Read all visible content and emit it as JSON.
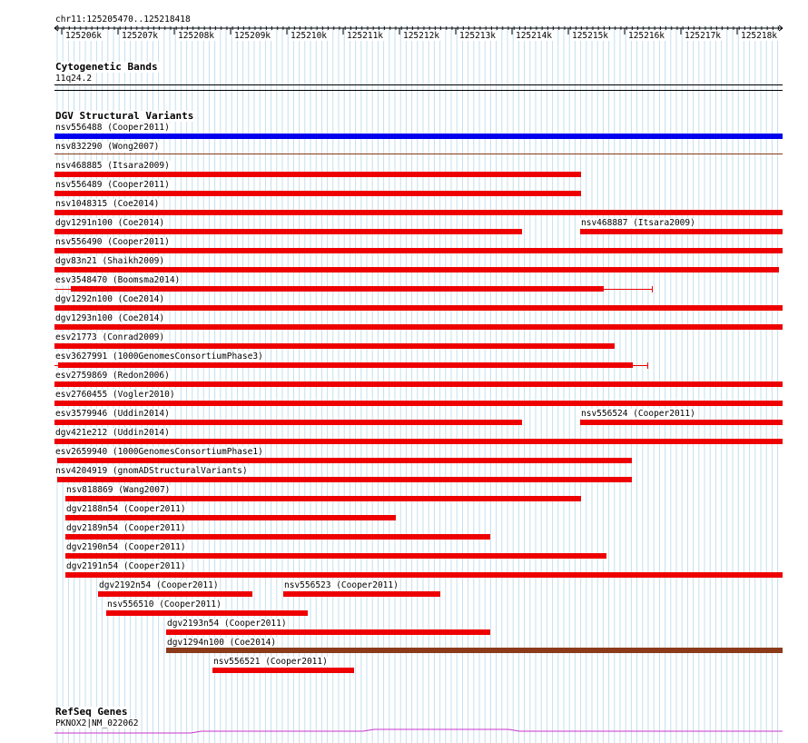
{
  "location": "chr11:125205470..125218418",
  "ruler_ticks": [
    "125206k",
    "125207k",
    "125208k",
    "125209k",
    "125210k",
    "125211k",
    "125212k",
    "125213k",
    "125214k",
    "125215k",
    "125216k",
    "125217k",
    "125218k"
  ],
  "cytoband": {
    "title": "Cytogenetic Bands",
    "band": "11q24.2"
  },
  "dgv": {
    "title": "DGV Structural Variants",
    "features": [
      {
        "label": "nsv556488 (Cooper2011)",
        "color": "#0000ee"
      },
      {
        "label": "nsv832290 (Wong2007)",
        "color": "#8b3a1a"
      },
      {
        "label": "nsv468885 (Itsara2009)",
        "color": "#ee0000"
      },
      {
        "label": "nsv556489 (Cooper2011)",
        "color": "#ee0000"
      },
      {
        "label": "nsv1048315 (Coe2014)",
        "color": "#ee0000"
      },
      {
        "label": "dgv1291n100 (Coe2014)",
        "color": "#ee0000"
      },
      {
        "label": "nsv468887 (Itsara2009)",
        "color": "#ee0000"
      },
      {
        "label": "nsv556490 (Cooper2011)",
        "color": "#ee0000"
      },
      {
        "label": "dgv83n21 (Shaikh2009)",
        "color": "#ee0000"
      },
      {
        "label": "esv3548470 (Boomsma2014)",
        "color": "#ee0000"
      },
      {
        "label": "dgv1292n100 (Coe2014)",
        "color": "#ee0000"
      },
      {
        "label": "dgv1293n100 (Coe2014)",
        "color": "#ee0000"
      },
      {
        "label": "esv21773 (Conrad2009)",
        "color": "#ee0000"
      },
      {
        "label": "esv3627991 (1000GenomesConsortiumPhase3)",
        "color": "#ee0000"
      },
      {
        "label": "esv2759869 (Redon2006)",
        "color": "#ee0000"
      },
      {
        "label": "esv2760455 (Vogler2010)",
        "color": "#ee0000"
      },
      {
        "label": "esv3579946 (Uddin2014)",
        "color": "#ee0000"
      },
      {
        "label": "nsv556524 (Cooper2011)",
        "color": "#ee0000"
      },
      {
        "label": "dgv421e212 (Uddin2014)",
        "color": "#ee0000"
      },
      {
        "label": "esv2659940 (1000GenomesConsortiumPhase1)",
        "color": "#ee0000"
      },
      {
        "label": "nsv4204919 (gnomADStructuralVariants)",
        "color": "#ee0000"
      },
      {
        "label": "nsv818869 (Wang2007)",
        "color": "#ee0000"
      },
      {
        "label": "dgv2188n54 (Cooper2011)",
        "color": "#ee0000"
      },
      {
        "label": "dgv2189n54 (Cooper2011)",
        "color": "#ee0000"
      },
      {
        "label": "dgv2190n54 (Cooper2011)",
        "color": "#ee0000"
      },
      {
        "label": "dgv2191n54 (Cooper2011)",
        "color": "#ee0000"
      },
      {
        "label": "dgv2192n54 (Cooper2011)",
        "color": "#ee0000"
      },
      {
        "label": "nsv556523 (Cooper2011)",
        "color": "#ee0000"
      },
      {
        "label": "nsv556510 (Cooper2011)",
        "color": "#ee0000"
      },
      {
        "label": "dgv2193n54 (Cooper2011)",
        "color": "#ee0000"
      },
      {
        "label": "dgv1294n100 (Coe2014)",
        "color": "#8b3a1a"
      },
      {
        "label": "nsv556521 (Cooper2011)",
        "color": "#ee0000"
      }
    ]
  },
  "refseq": {
    "title": "RefSeq Genes",
    "gene": "PKNOX2|NM_022062",
    "color": "#cc33cc"
  }
}
